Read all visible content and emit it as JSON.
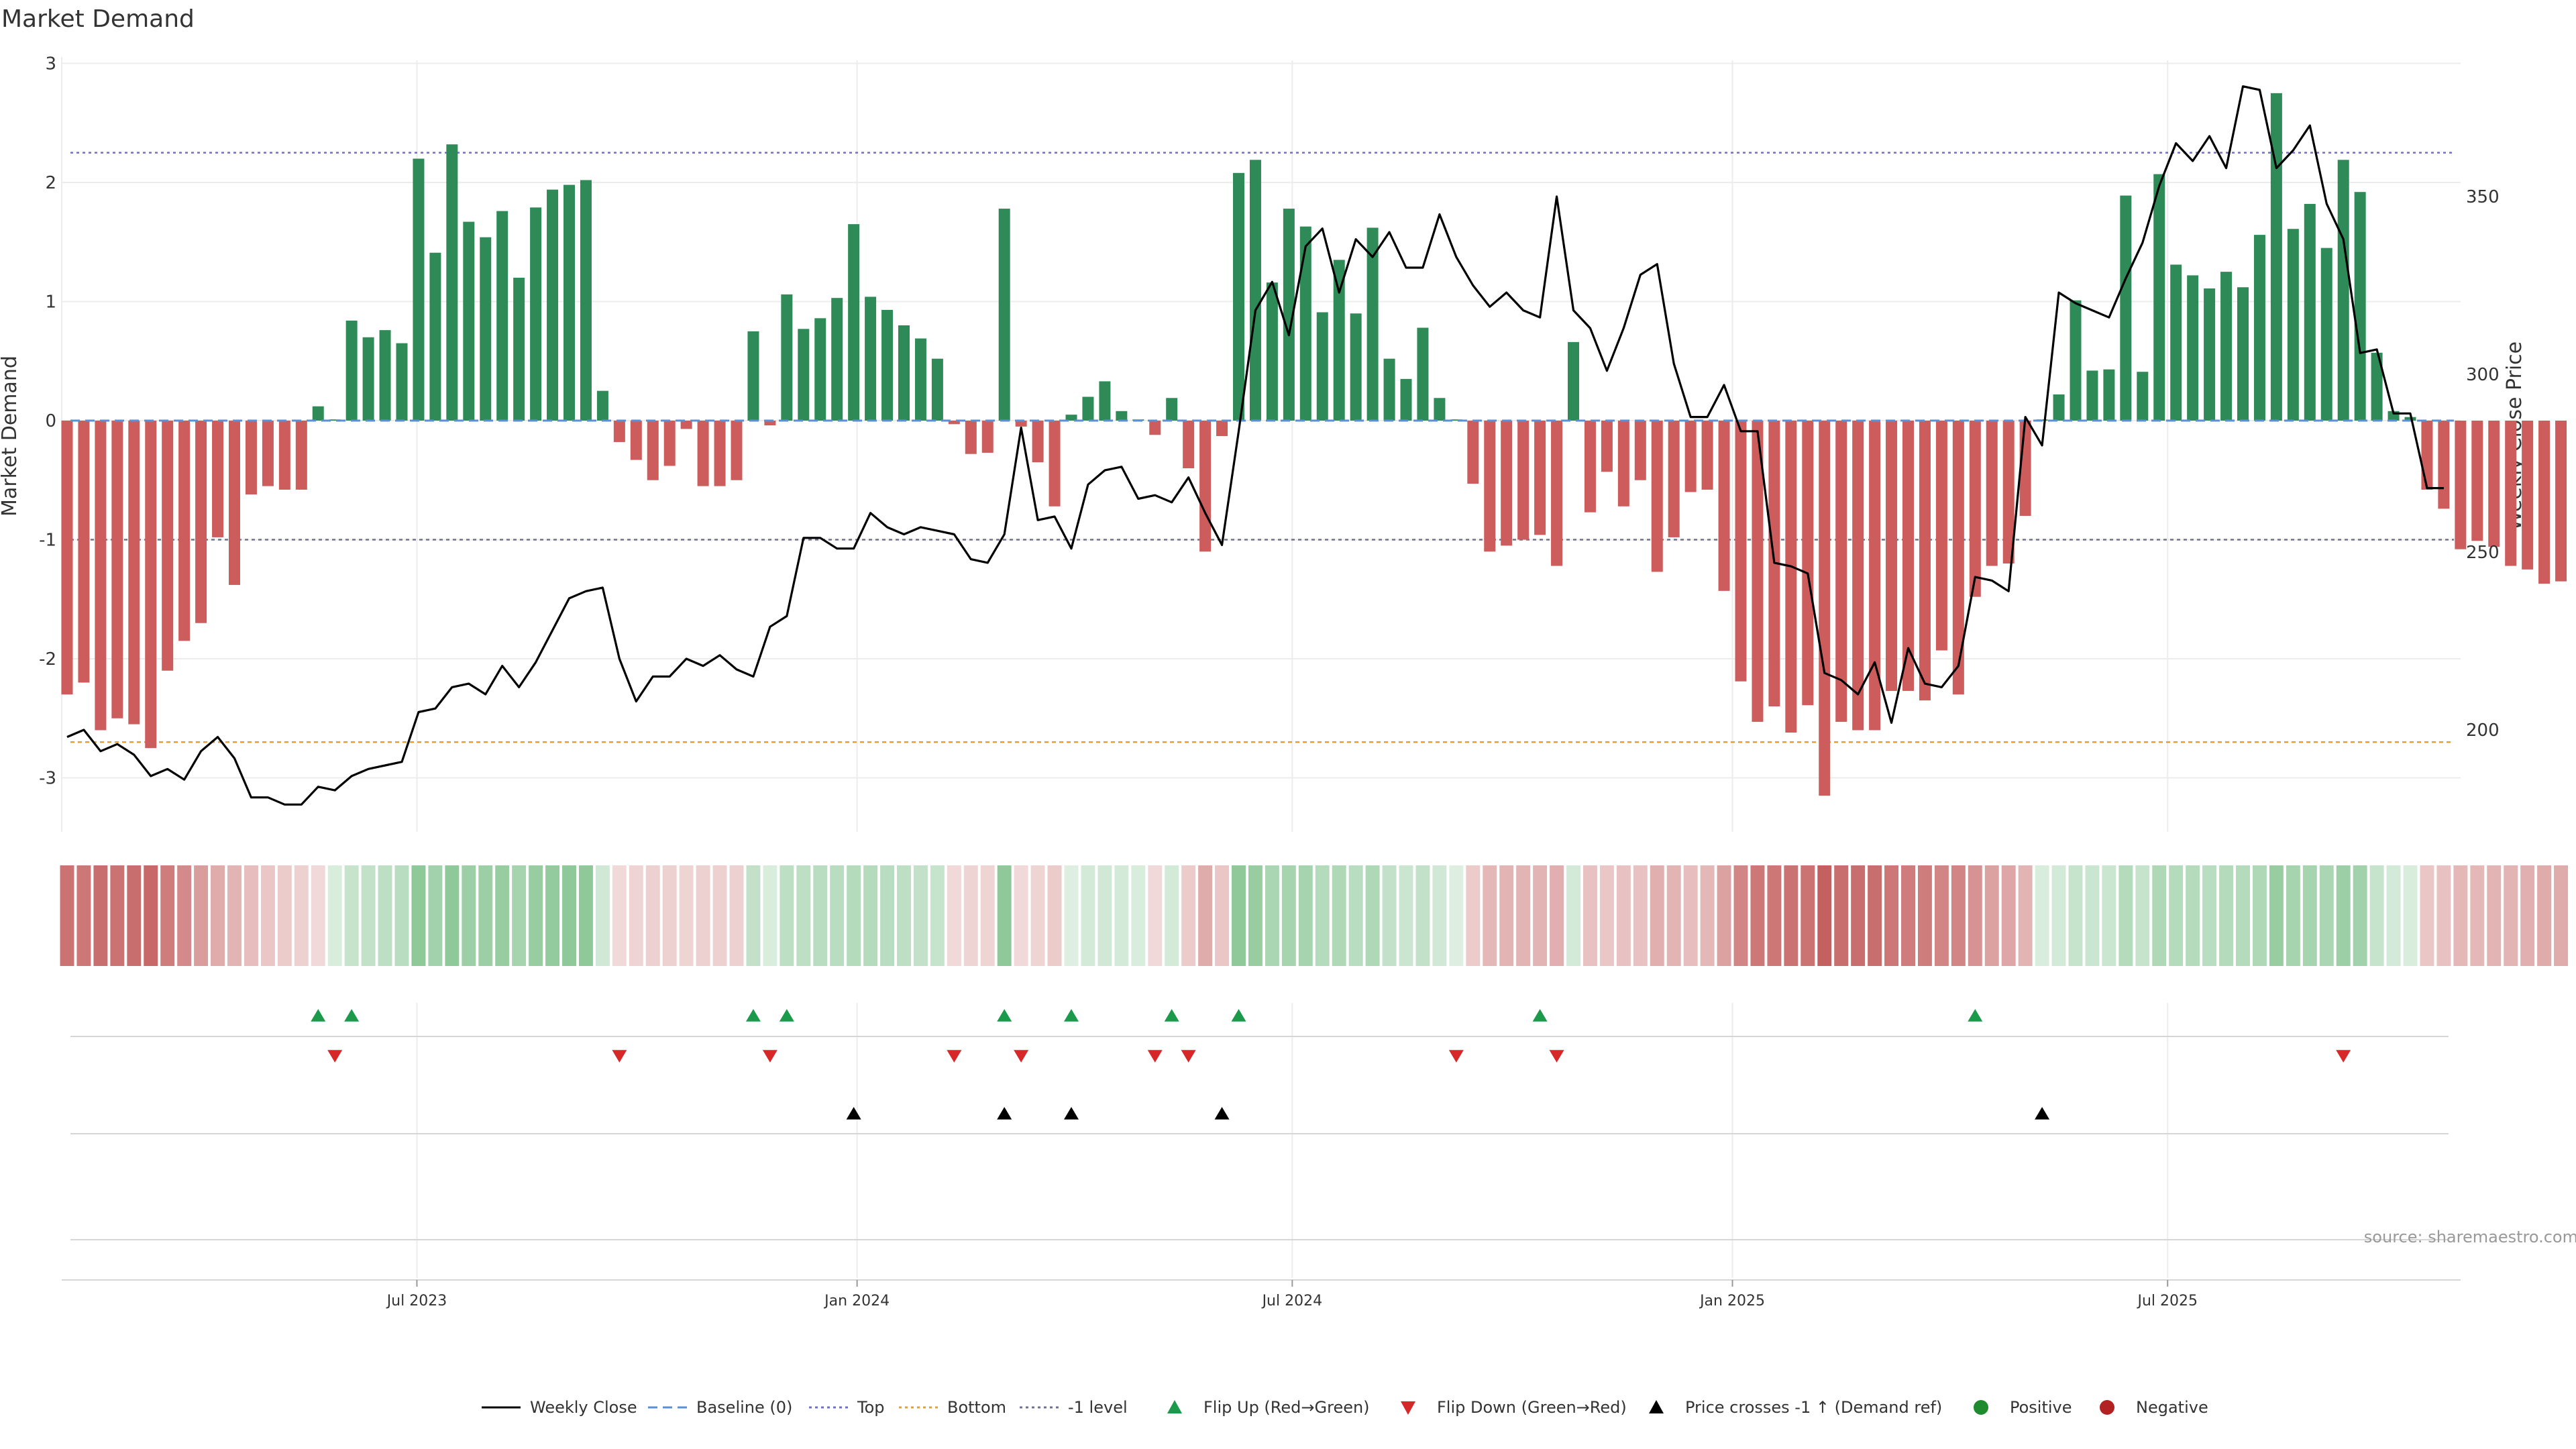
{
  "chart_data": {
    "type": "bar",
    "title": "Market Demand",
    "ylabel_left": "Market Demand",
    "ylabel_right": "Weekly Close Price",
    "y_left_range": [
      -3.5,
      3.2
    ],
    "y_right_range": [
      165,
      385
    ],
    "y_left_ticks": [
      3,
      2,
      1,
      0,
      -1,
      -2,
      -3
    ],
    "y_right_ticks": [
      350,
      300,
      250,
      200
    ],
    "x_ticks": [
      "Jul 2023",
      "Jan 2024",
      "Jul 2024",
      "Jan 2025",
      "Jul 2025"
    ],
    "x_tick_index": [
      20.9,
      47.2,
      73.2,
      99.5,
      125.5
    ],
    "reference_lines": {
      "top": 2.25,
      "bottom": -2.7,
      "minus_one": -1,
      "baseline": 0
    },
    "market_demand": [
      -2.3,
      -2.2,
      -2.6,
      -2.5,
      -2.55,
      -2.75,
      -2.1,
      -1.85,
      -1.7,
      -0.98,
      -1.38,
      -0.62,
      -0.55,
      -0.58,
      -0.58,
      0.12,
      0.01,
      0.84,
      0.7,
      0.76,
      0.65,
      2.2,
      1.41,
      2.32,
      1.67,
      1.54,
      1.76,
      1.2,
      1.79,
      1.94,
      1.98,
      2.02,
      0.25,
      -0.18,
      -0.33,
      -0.5,
      -0.38,
      -0.07,
      -0.55,
      -0.55,
      -0.5,
      0.75,
      -0.04,
      1.06,
      0.77,
      0.86,
      1.03,
      1.65,
      1.04,
      0.93,
      0.8,
      0.69,
      0.52,
      -0.03,
      -0.28,
      -0.27,
      1.78,
      -0.05,
      -0.35,
      -0.72,
      0.05,
      0.2,
      0.33,
      0.08,
      0.01,
      -0.12,
      0.19,
      -0.4,
      -1.1,
      -0.13,
      2.08,
      2.19,
      1.16,
      1.78,
      1.63,
      0.91,
      1.35,
      0.9,
      1.62,
      0.52,
      0.35,
      0.78,
      0.19,
      0.01,
      -0.53,
      -1.1,
      -1.05,
      -1.0,
      -0.96,
      -1.22,
      0.66,
      -0.77,
      -0.43,
      -0.72,
      -0.5,
      -1.27,
      -0.98,
      -0.6,
      -0.58,
      -1.43,
      -2.19,
      -2.53,
      -2.4,
      -2.62,
      -2.39,
      -3.15,
      -2.53,
      -2.6,
      -2.6,
      -2.27,
      -2.27,
      -2.35,
      -1.93,
      -2.3,
      -1.48,
      -1.22,
      -1.2,
      -0.8,
      0.01,
      0.22,
      1.01,
      0.42,
      0.43,
      1.89,
      0.41,
      2.07,
      1.31,
      1.22,
      1.11,
      1.25,
      1.12,
      1.56,
      2.75,
      1.61,
      1.82,
      1.45,
      2.19,
      1.92,
      0.57,
      0.08,
      0.03,
      -0.58,
      -0.74,
      -1.08,
      -1.01,
      -1.06,
      -1.22,
      -1.25,
      -1.37,
      -1.35
    ],
    "weekly_close": [
      198,
      200,
      194,
      196,
      193,
      187,
      189,
      186,
      194,
      198,
      192,
      181,
      181,
      179,
      179,
      184,
      183,
      187,
      189,
      190,
      191,
      205,
      206,
      212,
      213,
      210,
      218,
      212,
      219,
      228,
      237,
      239,
      240,
      220,
      208,
      215,
      215,
      220,
      218,
      221,
      217,
      215,
      229,
      232,
      254,
      254,
      251,
      251,
      261,
      257,
      255,
      257,
      256,
      255,
      248,
      247,
      255,
      285,
      259,
      260,
      251,
      269,
      273,
      274,
      265,
      266,
      264,
      271,
      261,
      252,
      284,
      318,
      326,
      311,
      336,
      341,
      323,
      338,
      333,
      340,
      330,
      330,
      345,
      333,
      325,
      319,
      323,
      318,
      316,
      350,
      318,
      313,
      301,
      313,
      328,
      331,
      303,
      288,
      288,
      297,
      284,
      284,
      247,
      246,
      244,
      216,
      214,
      210,
      219,
      202,
      223,
      213,
      212,
      218,
      243,
      242,
      239,
      288,
      280,
      323,
      320,
      318,
      316,
      327,
      337,
      353,
      365,
      360,
      367,
      358,
      381,
      380,
      358,
      363,
      370,
      348,
      338,
      306,
      307,
      289,
      289,
      268,
      268
    ],
    "heat_strip": [
      -2.4,
      -2.3,
      -2.5,
      -2.4,
      -2.5,
      -2.6,
      -2.2,
      -1.9,
      -1.5,
      -1.2,
      -1.0,
      -0.8,
      -0.6,
      -0.5,
      -0.4,
      -0.2,
      0.2,
      0.6,
      0.7,
      0.8,
      0.9,
      1.8,
      1.4,
      1.8,
      1.5,
      1.5,
      1.6,
      1.3,
      1.6,
      1.7,
      1.8,
      1.8,
      0.4,
      -0.2,
      -0.3,
      -0.4,
      -0.4,
      -0.3,
      -0.4,
      -0.4,
      -0.4,
      0.7,
      0.2,
      0.8,
      0.8,
      0.9,
      0.9,
      1.0,
      1.0,
      0.9,
      0.8,
      0.7,
      0.6,
      -0.2,
      -0.3,
      -0.3,
      1.8,
      -0.2,
      -0.3,
      -0.5,
      0.1,
      0.3,
      0.4,
      0.3,
      0.2,
      -0.2,
      0.3,
      -0.5,
      -1.2,
      -0.6,
      1.8,
      1.6,
      1.2,
      1.3,
      1.3,
      1.0,
      1.1,
      0.9,
      1.1,
      0.7,
      0.5,
      0.7,
      0.4,
      0.1,
      -0.5,
      -0.9,
      -1.0,
      -1.0,
      -1.0,
      -1.1,
      0.3,
      -0.7,
      -0.6,
      -0.7,
      -0.7,
      -1.1,
      -1.0,
      -0.8,
      -0.9,
      -1.4,
      -2.0,
      -2.3,
      -2.3,
      -2.4,
      -2.4,
      -2.8,
      -2.5,
      -2.5,
      -2.5,
      -2.3,
      -2.2,
      -2.2,
      -2.0,
      -2.0,
      -1.7,
      -1.4,
      -1.3,
      -1.0,
      0.2,
      0.3,
      0.6,
      0.5,
      0.5,
      1.0,
      0.6,
      1.1,
      1.0,
      1.0,
      0.9,
      1.0,
      1.0,
      1.1,
      1.6,
      1.3,
      1.3,
      1.2,
      1.5,
      1.4,
      0.6,
      0.3,
      0.2,
      -0.6,
      -0.7,
      -0.9,
      -0.9,
      -1.0,
      -1.0,
      -1.1,
      -1.2,
      -1.2
    ],
    "flip_up_weeks": [
      15,
      17,
      41,
      43,
      56,
      60,
      66,
      70,
      88,
      114
    ],
    "flip_down_weeks": [
      16,
      33,
      42,
      53,
      57,
      65,
      67,
      83,
      89,
      136
    ],
    "price_cross_weeks": [
      47,
      56,
      60,
      69,
      118
    ],
    "legend": [
      "Weekly Close",
      "Baseline (0)",
      "Top",
      "Bottom",
      "-1 level",
      "Flip Up (Red→Green)",
      "Flip Down (Green→Red)",
      "Price crosses -1 ↑ (Demand ref)",
      "Positive",
      "Negative"
    ],
    "source": "source: sharemaestro.com",
    "colors": {
      "positive": "#2e8b57",
      "negative": "#cd5c5c",
      "close": "#000000",
      "baseline": "#5b8fd6",
      "top": "#7070c8",
      "bottom": "#e0a040",
      "minus_one": "#707090",
      "flip_up": "#1a9a4a",
      "flip_down": "#d62828",
      "cross": "#000000",
      "positive_dot": "#1e8c2e",
      "negative_dot": "#b22222"
    }
  }
}
